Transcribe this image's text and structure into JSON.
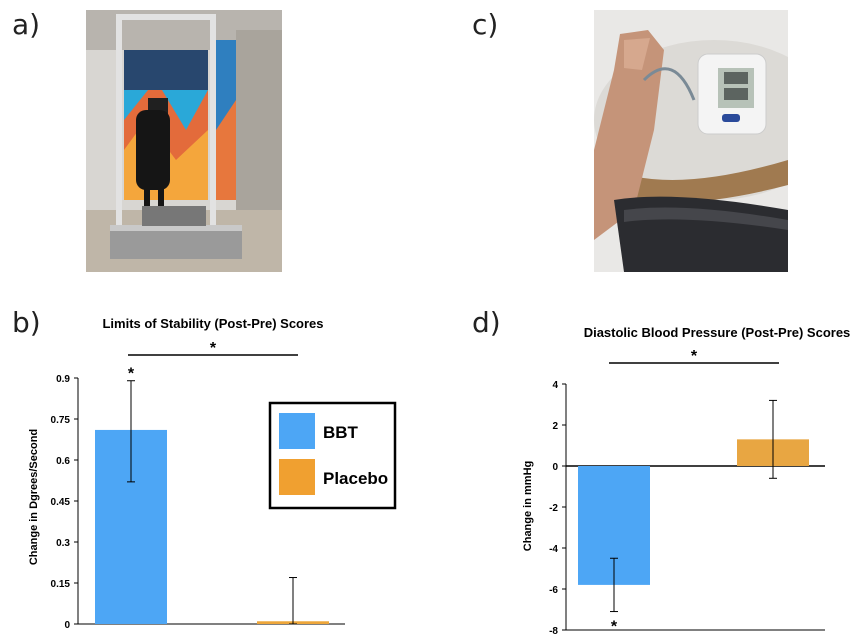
{
  "panels": {
    "a": "a)",
    "b": "b)",
    "c": "c)",
    "d": "d)"
  },
  "legend": {
    "items": [
      {
        "label": "BBT",
        "color": "#4da6f5"
      },
      {
        "label": "Placebo",
        "color": "#f0a030"
      }
    ]
  },
  "colors": {
    "bbt": "#4da6f5",
    "placebo": "#eda63a",
    "bp_placebo": "#e8a642"
  },
  "chart_data": [
    {
      "type": "bar",
      "title": "Limits of Stability (Post-Pre) Scores",
      "ylabel": "Change in Dgrees/Second",
      "xlabel": "",
      "ylim": [
        0,
        0.9
      ],
      "yticks": [
        "0",
        "0.15",
        "0.3",
        "0.45",
        "0.6",
        "0.75",
        "0.9"
      ],
      "ytick_values": [
        0,
        0.15,
        0.3,
        0.45,
        0.6,
        0.75,
        0.9
      ],
      "categories": [
        "BBT",
        "Placebo"
      ],
      "values": [
        0.71,
        0.01
      ],
      "error_low": [
        0.52,
        0.0
      ],
      "error_high": [
        0.89,
        0.17
      ],
      "bar_annotation": "*",
      "significance": "*",
      "legend_position": "right"
    },
    {
      "type": "bar",
      "title": "Diastolic Blood Pressure (Post-Pre) Scores",
      "ylabel": "Change in mmHg",
      "xlabel": "",
      "ylim": [
        -8,
        4
      ],
      "yticks": [
        "4",
        "2",
        "0",
        "-2",
        "-4",
        "-6",
        "-8"
      ],
      "ytick_values": [
        4,
        2,
        0,
        -2,
        -4,
        -6,
        -8
      ],
      "categories": [
        "BBT",
        "Placebo"
      ],
      "values": [
        -5.8,
        1.3
      ],
      "error_low": [
        -7.1,
        -0.6
      ],
      "error_high": [
        -4.5,
        3.2
      ],
      "bar_annotation": "*",
      "significance": "*"
    }
  ]
}
